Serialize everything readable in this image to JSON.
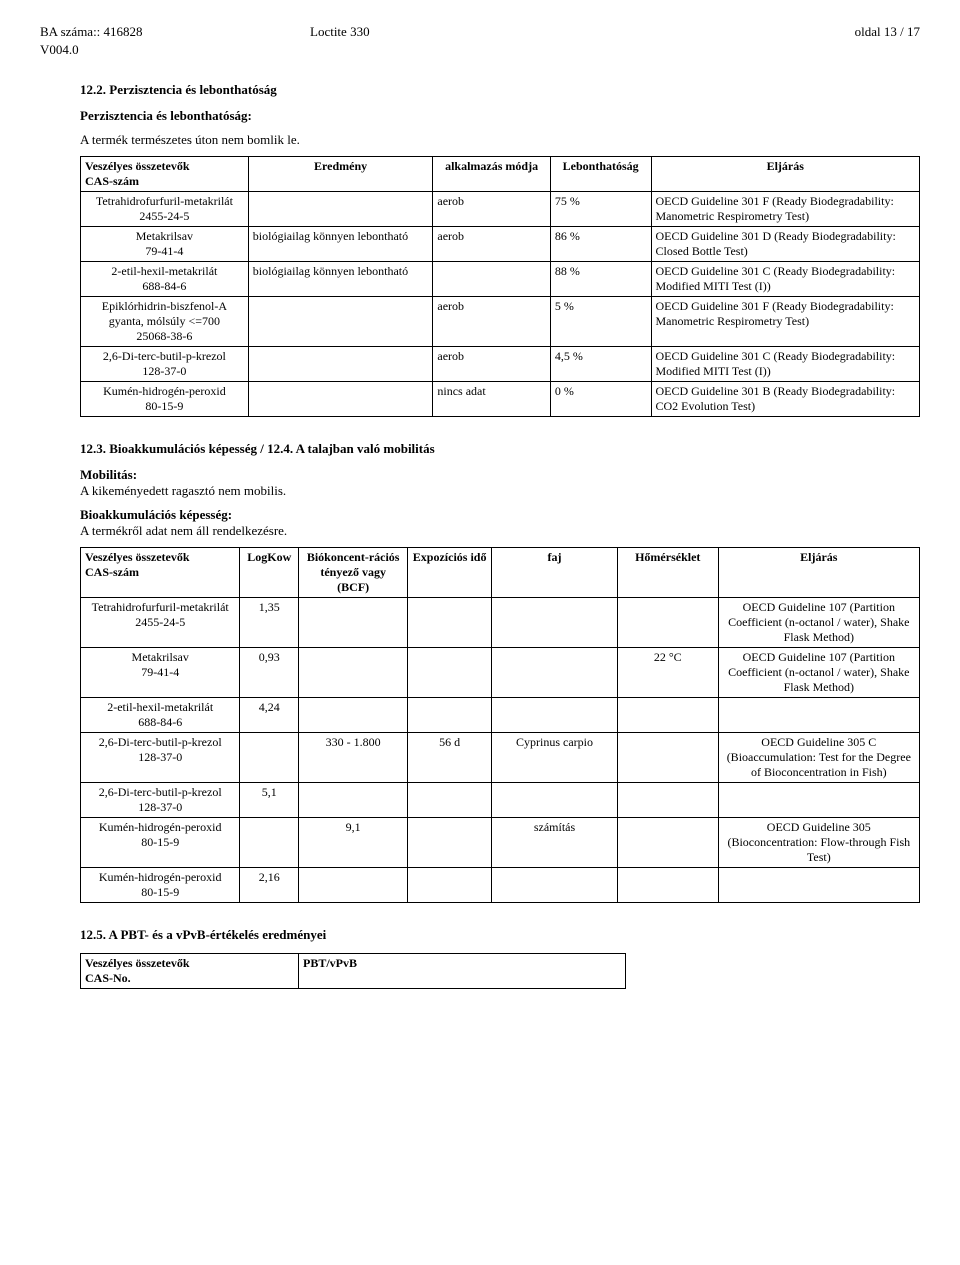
{
  "header": {
    "ba_label": "BA száma:: 416828",
    "product": "Loctite 330",
    "page": "oldal 13 / 17",
    "version": "V004.0"
  },
  "s12_2": {
    "title": "12.2. Perzisztencia és lebonthatóság",
    "subhead": "Perzisztencia és lebonthatóság:",
    "text": "A termék természetes úton nem bomlik le."
  },
  "t1": {
    "headers": [
      "Veszélyes összetevők\nCAS-szám",
      "Eredmény",
      "alkalmazás módja",
      "Lebonthatóság",
      "Eljárás"
    ],
    "rows": [
      {
        "c1": "Tetrahidrofurfuril-metakrilát\n2455-24-5",
        "c2": "",
        "c3": "aerob",
        "c4": "75 %",
        "c5": "OECD Guideline 301 F (Ready Biodegradability: Manometric Respirometry Test)"
      },
      {
        "c1": "Metakrilsav\n79-41-4",
        "c2": "biológiailag könnyen lebontható",
        "c3": "aerob",
        "c4": "86 %",
        "c5": "OECD Guideline 301 D (Ready Biodegradability: Closed Bottle Test)"
      },
      {
        "c1": "2-etil-hexil-metakrilát\n688-84-6",
        "c2": "biológiailag könnyen lebontható",
        "c3": "",
        "c4": "88 %",
        "c5": "OECD Guideline 301 C (Ready Biodegradability: Modified MITI Test (I))"
      },
      {
        "c1": "Epiklórhidrin-biszfenol-A gyanta, mólsúly <=700\n25068-38-6",
        "c2": "",
        "c3": "aerob",
        "c4": "5 %",
        "c5": "OECD Guideline 301 F (Ready Biodegradability: Manometric Respirometry Test)"
      },
      {
        "c1": "2,6-Di-terc-butil-p-krezol\n128-37-0",
        "c2": "",
        "c3": "aerob",
        "c4": "4,5 %",
        "c5": "OECD Guideline 301 C (Ready Biodegradability: Modified MITI Test (I))"
      },
      {
        "c1": "Kumén-hidrogén-peroxid\n80-15-9",
        "c2": "",
        "c3": "nincs adat",
        "c4": "0 %",
        "c5": "OECD Guideline 301 B (Ready Biodegradability: CO2 Evolution Test)"
      }
    ]
  },
  "s12_3": {
    "title": "12.3. Bioakkumulációs képesség / 12.4. A talajban való mobilitás",
    "mob_h": "Mobilitás:",
    "mob_t": "A kikeményedett ragasztó nem mobilis.",
    "bio_h": "Bioakkumulációs képesség:",
    "bio_t": "A termékről adat nem áll rendelkezésre."
  },
  "t2": {
    "headers": [
      "Veszélyes összetevők\nCAS-szám",
      "LogKow",
      "Biókoncent-rációs tényező vagy (BCF)",
      "Expozíciós idő",
      "faj",
      "Hőmérséklet",
      "Eljárás"
    ],
    "rows": [
      {
        "c1": "Tetrahidrofurfuril-metakrilát\n2455-24-5",
        "c2": "1,35",
        "c3": "",
        "c4": "",
        "c5": "",
        "c6": "",
        "c7": "OECD Guideline 107 (Partition Coefficient (n-octanol / water), Shake Flask Method)"
      },
      {
        "c1": "Metakrilsav\n79-41-4",
        "c2": "0,93",
        "c3": "",
        "c4": "",
        "c5": "",
        "c6": "22 °C",
        "c7": "OECD Guideline 107 (Partition Coefficient (n-octanol / water), Shake Flask Method)"
      },
      {
        "c1": "2-etil-hexil-metakrilát\n688-84-6",
        "c2": "4,24",
        "c3": "",
        "c4": "",
        "c5": "",
        "c6": "",
        "c7": ""
      },
      {
        "c1": "2,6-Di-terc-butil-p-krezol\n128-37-0",
        "c2": "",
        "c3": "330 - 1.800",
        "c4": "56 d",
        "c5": "Cyprinus carpio",
        "c6": "",
        "c7": "OECD Guideline 305 C (Bioaccumulation: Test for the Degree of Bioconcentration in Fish)"
      },
      {
        "c1": "2,6-Di-terc-butil-p-krezol\n128-37-0",
        "c2": "5,1",
        "c3": "",
        "c4": "",
        "c5": "",
        "c6": "",
        "c7": ""
      },
      {
        "c1": "Kumén-hidrogén-peroxid\n80-15-9",
        "c2": "",
        "c3": "9,1",
        "c4": "",
        "c5": "számítás",
        "c6": "",
        "c7": "OECD Guideline 305 (Bioconcentration: Flow-through Fish Test)"
      },
      {
        "c1": "Kumén-hidrogén-peroxid\n80-15-9",
        "c2": "2,16",
        "c3": "",
        "c4": "",
        "c5": "",
        "c6": "",
        "c7": ""
      }
    ]
  },
  "s12_5": {
    "title": "12.5. A PBT- és a vPvB-értékelés eredményei"
  },
  "t3": {
    "h1": "Veszélyes összetevők\nCAS-No.",
    "h2": "PBT/vPvB"
  }
}
